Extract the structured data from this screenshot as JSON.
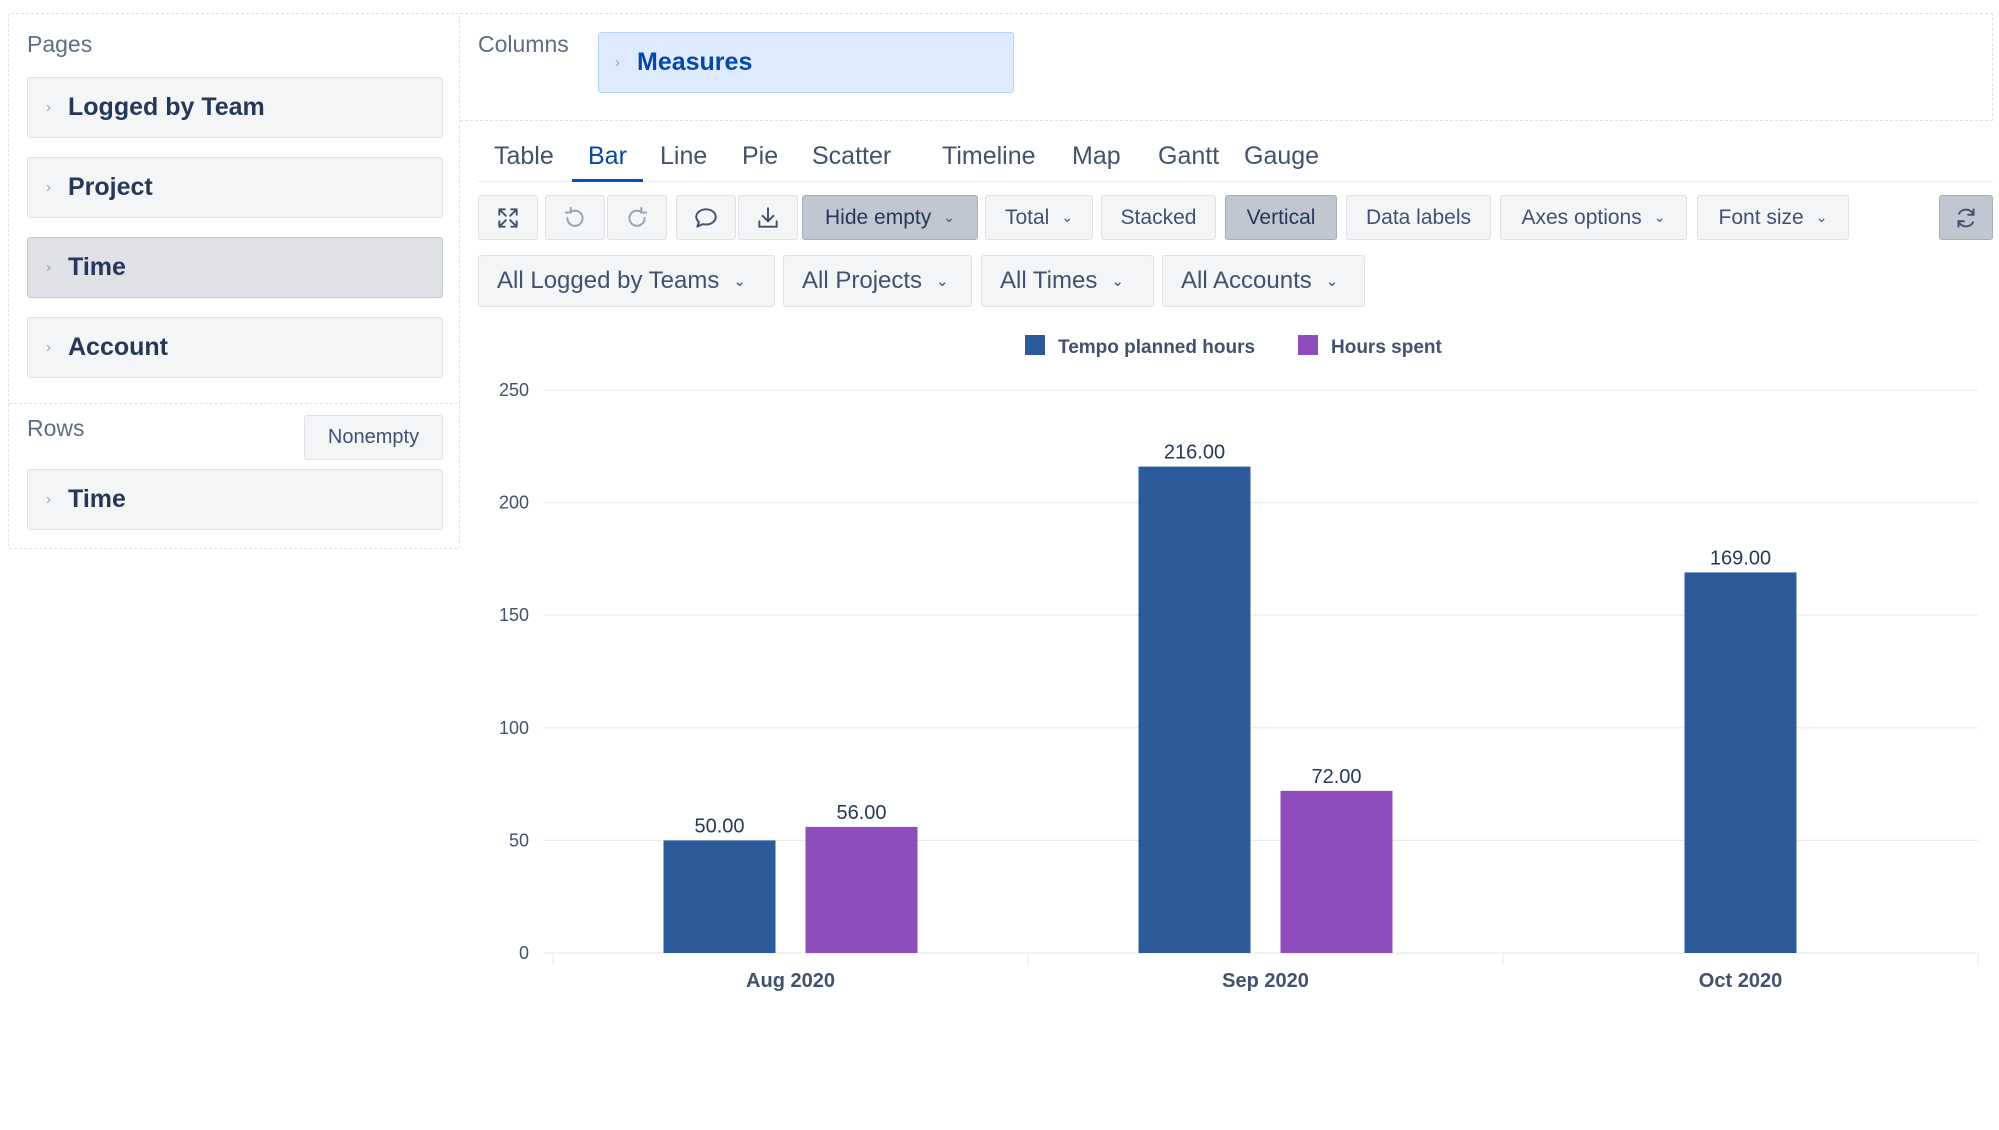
{
  "pages": {
    "title": "Pages",
    "items": [
      {
        "label": "Logged by Team",
        "selected": false
      },
      {
        "label": "Project",
        "selected": false
      },
      {
        "label": "Time",
        "selected": true
      },
      {
        "label": "Account",
        "selected": false
      }
    ]
  },
  "rows": {
    "title": "Rows",
    "nonempty_label": "Nonempty",
    "items": [
      {
        "label": "Time"
      }
    ]
  },
  "columns": {
    "title": "Columns",
    "items": [
      {
        "label": "Measures"
      }
    ]
  },
  "tabs": [
    "Table",
    "Bar",
    "Line",
    "Pie",
    "Scatter",
    "Timeline",
    "Map",
    "Gantt",
    "Gauge"
  ],
  "active_tab": "Bar",
  "toolbar": {
    "hide_empty": "Hide empty",
    "total": "Total",
    "stacked": "Stacked",
    "vertical": "Vertical",
    "data_labels": "Data labels",
    "axes_options": "Axes options",
    "font_size": "Font size"
  },
  "icons": {
    "fullscreen": "fullscreen-icon",
    "undo": "undo-icon",
    "redo": "redo-icon",
    "comment": "comment-icon",
    "export": "download-icon",
    "refresh": "refresh-icon",
    "dropdown": "chevron-down-icon",
    "expand": "chevron-right-icon"
  },
  "filters": [
    {
      "label": "All Logged by Teams"
    },
    {
      "label": "All Projects"
    },
    {
      "label": "All Times"
    },
    {
      "label": "All Accounts"
    }
  ],
  "chart_data": {
    "type": "bar",
    "categories": [
      "Aug 2020",
      "Sep 2020",
      "Oct 2020"
    ],
    "series": [
      {
        "name": "Tempo planned hours",
        "color": "#2d5b99",
        "values": [
          50,
          216,
          169
        ],
        "labels": [
          "50.00",
          "216.00",
          "169.00"
        ]
      },
      {
        "name": "Hours spent",
        "color": "#8e4cbd",
        "values": [
          56,
          72,
          null
        ],
        "labels": [
          "56.00",
          "72.00",
          ""
        ]
      }
    ],
    "ylim": [
      0,
      250
    ],
    "yticks": [
      0,
      50,
      100,
      150,
      200,
      250
    ],
    "legend_position": "top-center",
    "grid": true,
    "orientation": "vertical"
  }
}
